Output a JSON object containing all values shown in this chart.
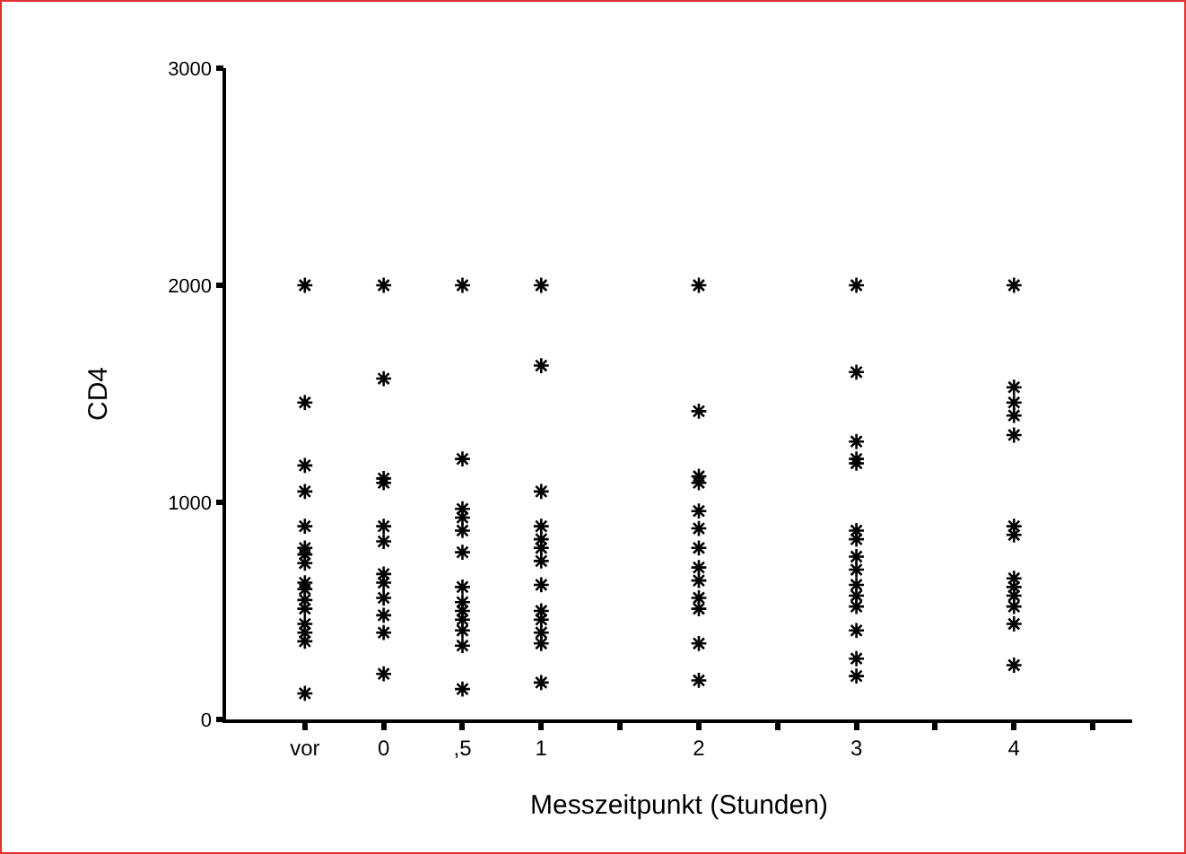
{
  "chart_data": {
    "type": "scatter",
    "xlabel": "Messzeitpunkt (Stunden)",
    "ylabel": "CD4",
    "categories": [
      "vor",
      "0",
      ",5",
      "1",
      null,
      "2",
      null,
      "3",
      null,
      "4",
      null
    ],
    "ylim": [
      0,
      3000
    ],
    "yticks": [
      0,
      1000,
      2000,
      3000
    ],
    "grid": false,
    "marker": "cross",
    "series": [
      {
        "color": "#000000",
        "x": [
          "vor",
          "vor",
          "vor",
          "vor",
          "vor",
          "vor",
          "vor",
          "vor",
          "vor",
          "vor",
          "vor",
          "vor",
          "vor",
          "vor",
          "vor",
          "vor"
        ],
        "values": [
          2000,
          1460,
          1170,
          1050,
          890,
          790,
          760,
          720,
          630,
          600,
          550,
          510,
          440,
          400,
          360,
          120
        ]
      },
      {
        "color": "#000000",
        "x": [
          "0",
          "0",
          "0",
          "0",
          "0",
          "0",
          "0",
          "0",
          "0",
          "0",
          "0",
          "0"
        ],
        "values": [
          2000,
          1570,
          1110,
          1090,
          890,
          820,
          670,
          630,
          560,
          480,
          400,
          210
        ]
      },
      {
        "color": "#000000",
        "x": [
          ",5",
          ",5",
          ",5",
          ",5",
          ",5",
          ",5",
          ",5",
          ",5",
          ",5",
          ",5",
          ",5",
          ",5",
          ",5"
        ],
        "values": [
          2000,
          1200,
          970,
          930,
          870,
          770,
          610,
          540,
          500,
          460,
          410,
          340,
          140
        ]
      },
      {
        "color": "#000000",
        "x": [
          "1",
          "1",
          "1",
          "1",
          "1",
          "1",
          "1",
          "1",
          "1",
          "1",
          "1",
          "1",
          "1"
        ],
        "values": [
          2000,
          1630,
          1050,
          890,
          830,
          790,
          730,
          620,
          500,
          460,
          400,
          350,
          170
        ]
      },
      {
        "color": "#000000",
        "x": [
          "2",
          "2",
          "2",
          "2",
          "2",
          "2",
          "2",
          "2",
          "2",
          "2",
          "2",
          "2",
          "2"
        ],
        "values": [
          2000,
          1420,
          1120,
          1090,
          960,
          880,
          790,
          700,
          640,
          560,
          510,
          350,
          180
        ]
      },
      {
        "color": "#000000",
        "x": [
          "3",
          "3",
          "3",
          "3",
          "3",
          "3",
          "3",
          "3",
          "3",
          "3",
          "3",
          "3",
          "3",
          "3",
          "3"
        ],
        "values": [
          2000,
          1600,
          1280,
          1200,
          1180,
          870,
          830,
          750,
          690,
          620,
          570,
          520,
          410,
          280,
          200
        ]
      },
      {
        "color": "#000000",
        "x": [
          "4",
          "4",
          "4",
          "4",
          "4",
          "4",
          "4",
          "4",
          "4",
          "4",
          "4",
          "4",
          "4"
        ],
        "values": [
          2000,
          1530,
          1460,
          1400,
          1310,
          890,
          850,
          650,
          610,
          570,
          520,
          440,
          250
        ]
      }
    ]
  }
}
